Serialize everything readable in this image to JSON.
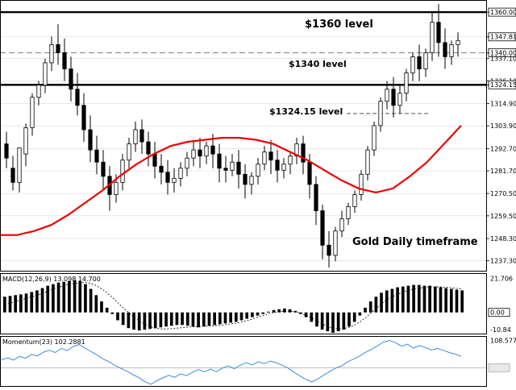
{
  "chart_data": [
    {
      "type": "candlestick",
      "title": "",
      "ylim": [
        1232.0,
        1366.0
      ],
      "y_ticks": [
        "1360.00",
        "1347.81",
        "1340.00",
        "1337.10",
        "1326.10",
        "1324.15",
        "1314.90",
        "1303.90",
        "1292.70",
        "1281.70",
        "1270.50",
        "1259.50",
        "1248.30",
        "1237.30"
      ],
      "y_tick_values": [
        1360.0,
        1347.81,
        1340.0,
        1337.1,
        1326.1,
        1324.15,
        1314.9,
        1303.9,
        1292.7,
        1281.7,
        1270.5,
        1259.5,
        1248.3,
        1237.3
      ],
      "highlighted_ticks": [
        "1360.00",
        "1347.81",
        "1340.00",
        "1324.15"
      ],
      "levels": [
        {
          "value": 1360.0,
          "label": "$1360  level",
          "style": "solid-thick"
        },
        {
          "value": 1340.0,
          "label": "$1340 level",
          "style": "dashed"
        },
        {
          "value": 1324.15,
          "label": "",
          "style": "solid-thick"
        },
        {
          "value": 1310.0,
          "label": "$1324.15  level",
          "style": "dashed-short"
        }
      ],
      "annotation": "Gold Daily timeframe",
      "moving_average": [
        1250,
        1250,
        1252,
        1255,
        1260,
        1266,
        1272,
        1279,
        1285,
        1290,
        1294,
        1296,
        1297,
        1298,
        1298,
        1297,
        1295,
        1291,
        1287,
        1282,
        1277,
        1273,
        1271,
        1273,
        1279,
        1286,
        1295,
        1304
      ],
      "candles": [
        [
          1295,
          1301,
          1288,
          1283
        ],
        [
          1283,
          1289,
          1276,
          1272
        ],
        [
          1276,
          1290,
          1293,
          1271
        ],
        [
          1290,
          1305,
          1303,
          1284
        ],
        [
          1303,
          1320,
          1318,
          1299
        ],
        [
          1318,
          1326,
          1324,
          1314
        ],
        [
          1324,
          1337,
          1335,
          1320
        ],
        [
          1335,
          1348,
          1344,
          1331
        ],
        [
          1344,
          1354,
          1340,
          1334
        ],
        [
          1340,
          1347,
          1332,
          1326
        ],
        [
          1332,
          1338,
          1322,
          1316
        ],
        [
          1322,
          1330,
          1314,
          1309
        ],
        [
          1314,
          1320,
          1302,
          1296
        ],
        [
          1302,
          1309,
          1292,
          1286
        ],
        [
          1292,
          1299,
          1286,
          1280
        ],
        [
          1286,
          1292,
          1279,
          1272
        ],
        [
          1279,
          1284,
          1270,
          1262
        ],
        [
          1270,
          1280,
          1276,
          1266
        ],
        [
          1276,
          1290,
          1287,
          1272
        ],
        [
          1287,
          1298,
          1295,
          1283
        ],
        [
          1295,
          1306,
          1302,
          1291
        ],
        [
          1302,
          1307,
          1296,
          1290
        ],
        [
          1296,
          1301,
          1290,
          1284
        ],
        [
          1290,
          1296,
          1284,
          1278
        ],
        [
          1284,
          1290,
          1281,
          1275
        ],
        [
          1281,
          1287,
          1276,
          1270
        ],
        [
          1276,
          1283,
          1278,
          1271
        ],
        [
          1278,
          1286,
          1283,
          1274
        ],
        [
          1283,
          1291,
          1288,
          1279
        ],
        [
          1288,
          1296,
          1292,
          1284
        ],
        [
          1292,
          1298,
          1289,
          1283
        ],
        [
          1289,
          1296,
          1294,
          1285
        ],
        [
          1294,
          1300,
          1290,
          1283
        ],
        [
          1290,
          1295,
          1283,
          1276
        ],
        [
          1283,
          1289,
          1282,
          1276
        ],
        [
          1282,
          1290,
          1286,
          1279
        ],
        [
          1286,
          1292,
          1280,
          1273
        ],
        [
          1280,
          1285,
          1275,
          1268
        ],
        [
          1275,
          1281,
          1279,
          1270
        ],
        [
          1279,
          1288,
          1285,
          1275
        ],
        [
          1285,
          1294,
          1291,
          1282
        ],
        [
          1291,
          1297,
          1287,
          1280
        ],
        [
          1287,
          1292,
          1282,
          1276
        ],
        [
          1282,
          1288,
          1285,
          1278
        ],
        [
          1285,
          1291,
          1289,
          1280
        ],
        [
          1289,
          1298,
          1295,
          1285
        ],
        [
          1295,
          1299,
          1286,
          1280
        ],
        [
          1286,
          1290,
          1275,
          1268
        ],
        [
          1275,
          1279,
          1262,
          1255
        ],
        [
          1262,
          1265,
          1245,
          1238
        ],
        [
          1245,
          1252,
          1240,
          1234
        ],
        [
          1240,
          1254,
          1252,
          1237
        ],
        [
          1252,
          1262,
          1258,
          1249
        ],
        [
          1258,
          1266,
          1264,
          1255
        ],
        [
          1264,
          1272,
          1270,
          1261
        ],
        [
          1270,
          1282,
          1280,
          1267
        ],
        [
          1280,
          1294,
          1292,
          1277
        ],
        [
          1292,
          1306,
          1304,
          1289
        ],
        [
          1304,
          1318,
          1316,
          1301
        ],
        [
          1316,
          1326,
          1322,
          1312
        ],
        [
          1322,
          1328,
          1314,
          1308
        ],
        [
          1314,
          1324,
          1320,
          1310
        ],
        [
          1320,
          1332,
          1330,
          1316
        ],
        [
          1330,
          1340,
          1338,
          1326
        ],
        [
          1338,
          1344,
          1332,
          1326
        ],
        [
          1332,
          1342,
          1340,
          1328
        ],
        [
          1340,
          1360,
          1355,
          1336
        ],
        [
          1355,
          1364,
          1345,
          1338
        ],
        [
          1345,
          1352,
          1338,
          1332
        ],
        [
          1338,
          1346,
          1344,
          1334
        ],
        [
          1344,
          1350,
          1346,
          1338
        ]
      ]
    },
    {
      "type": "bar",
      "title": "MACD(12,26,9) 13.098 14.700",
      "ylim": [
        -14.0,
        25.0
      ],
      "y_ticks": [
        "21.706",
        "0.00",
        "-10.84"
      ],
      "y_tick_values": [
        21.706,
        0.0,
        -10.84
      ],
      "highlighted_ticks": [
        "0.00"
      ],
      "values": [
        10,
        10.5,
        11,
        11.5,
        12,
        13,
        14,
        15.5,
        17,
        18,
        19,
        19.5,
        20,
        20.5,
        20,
        18,
        15,
        11,
        7,
        3,
        -1,
        -5,
        -8,
        -10,
        -11,
        -11.5,
        -11,
        -10.5,
        -10,
        -9.5,
        -9,
        -8.5,
        -8,
        -8,
        -8.5,
        -9,
        -9.5,
        -9,
        -8.5,
        -8,
        -7.5,
        -7,
        -6.5,
        -6,
        -5,
        -4,
        -3,
        -2,
        -1,
        0.5,
        1.5,
        2,
        2.5,
        2,
        1,
        -1,
        -3,
        -6,
        -9,
        -11,
        -12,
        -13,
        -12,
        -11,
        -9,
        -6,
        -2,
        3,
        7,
        10,
        12.5,
        14,
        15,
        16,
        16.5,
        17,
        17.5,
        17.5,
        17,
        17,
        16.5,
        16,
        15.5,
        15,
        14.5,
        14
      ],
      "signal": [
        5,
        6,
        7,
        8,
        9,
        10,
        11,
        12,
        13.5,
        15,
        16,
        17,
        18,
        18.5,
        19,
        19,
        18.5,
        17,
        15,
        12.5,
        9.5,
        6,
        3,
        0,
        -3,
        -5.5,
        -7.5,
        -9,
        -10,
        -10.5,
        -10.5,
        -10.3,
        -10,
        -9.7,
        -9.4,
        -9.2,
        -9,
        -8.8,
        -8.6,
        -8.4,
        -8.2,
        -7.8,
        -7.3,
        -6.8,
        -6,
        -5.2,
        -4.2,
        -3,
        -2,
        -0.8,
        0,
        0.5,
        0.8,
        0.8,
        0.4,
        -0.5,
        -2,
        -3.5,
        -5.5,
        -7.5,
        -9,
        -10,
        -10.5,
        -10.3,
        -9.5,
        -8,
        -6,
        -3.5,
        -0.5,
        2.5,
        5.5,
        8,
        10,
        11.5,
        13,
        14,
        15,
        15.5,
        16,
        16.3,
        16.3,
        16.2,
        16,
        15.7,
        15.3,
        15
      ]
    },
    {
      "type": "line",
      "title": "Momentum(23) 102.2881",
      "ylim": [
        94.0,
        110.0
      ],
      "y_ticks": [
        "108.5773"
      ],
      "y_tick_values": [
        108.5773
      ],
      "highlighted_ticks": [
        "100"
      ],
      "values": [
        102.5,
        103.1,
        102.4,
        103.6,
        103.0,
        104.2,
        103.7,
        104.9,
        105.5,
        104.8,
        106.1,
        105.4,
        106.7,
        107.3,
        106.2,
        105.1,
        104.0,
        102.8,
        101.9,
        100.7,
        99.8,
        98.9,
        97.8,
        96.9,
        95.6,
        94.8,
        95.9,
        96.8,
        97.6,
        97.0,
        98.1,
        97.5,
        98.6,
        99.4,
        98.7,
        99.6,
        98.8,
        99.9,
        100.6,
        99.7,
        100.8,
        101.6,
        100.9,
        101.9,
        101.3,
        102.1,
        101.6,
        100.8,
        99.9,
        98.6,
        97.4,
        96.3,
        95.5,
        96.5,
        97.7,
        98.8,
        99.9,
        100.6,
        101.9,
        102.8,
        103.7,
        104.9,
        105.8,
        106.9,
        108.1,
        108.6,
        107.9,
        106.8,
        107.4,
        106.2,
        107.0,
        106.4,
        105.6,
        106.1,
        105.5,
        104.8,
        104.3,
        103.6
      ]
    }
  ]
}
